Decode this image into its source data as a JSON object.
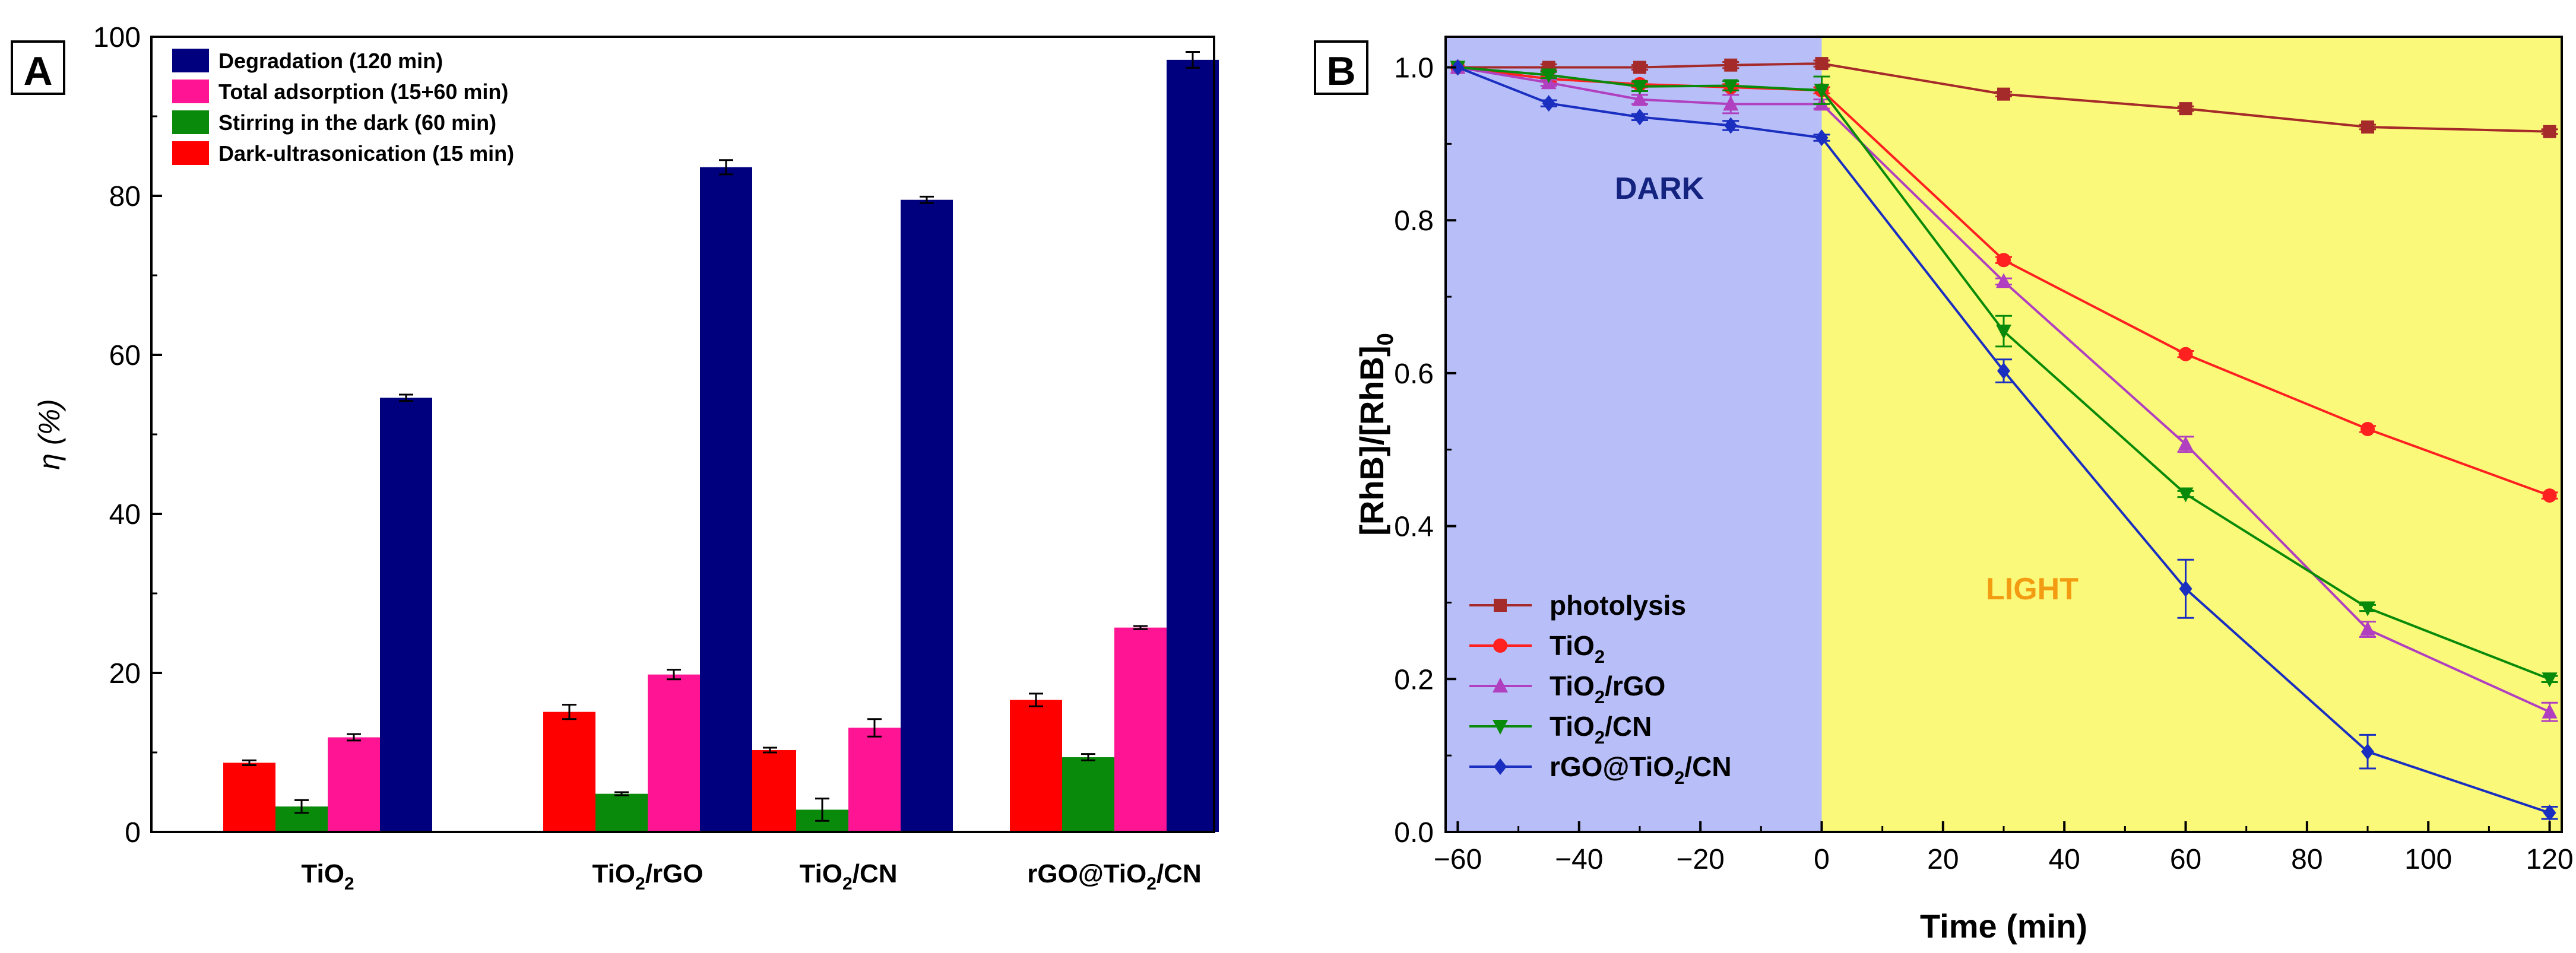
{
  "chart_data": [
    {
      "panel": "A",
      "type": "bar",
      "ylabel": "η (%)",
      "xlabel": "",
      "ylim": [
        0,
        100
      ],
      "yticks": [
        0,
        20,
        40,
        60,
        80,
        100
      ],
      "categories": [
        "TiO2",
        "TiO2/rGO",
        "TiO2/CN",
        "rGO@TiO2/CN"
      ],
      "category_labels": [
        {
          "parts": [
            {
              "t": "TiO"
            },
            {
              "t": "2",
              "sub": true
            }
          ]
        },
        {
          "parts": [
            {
              "t": "TiO"
            },
            {
              "t": "2",
              "sub": true
            },
            {
              "t": "/rGO"
            }
          ]
        },
        {
          "parts": [
            {
              "t": "TiO"
            },
            {
              "t": "2",
              "sub": true
            },
            {
              "t": "/CN"
            }
          ]
        },
        {
          "parts": [
            {
              "t": "rGO@TiO"
            },
            {
              "t": "2",
              "sub": true
            },
            {
              "t": "/CN"
            }
          ]
        }
      ],
      "series": [
        {
          "name": "Dark-ultrasonication (15 min)",
          "color": "#ff0000",
          "values": [
            8.7,
            15.1,
            10.3,
            16.6
          ],
          "errors": [
            0.3,
            0.9,
            0.3,
            0.8
          ]
        },
        {
          "name": "Stirring in the dark (60 min)",
          "color": "#0a8a0a",
          "values": [
            3.2,
            4.8,
            2.8,
            9.4
          ],
          "errors": [
            0.8,
            0.2,
            1.4,
            0.4
          ]
        },
        {
          "name": "Total adsorption (15+60 min)",
          "color": "#ff1493",
          "values": [
            11.9,
            19.8,
            13.1,
            25.7
          ],
          "errors": [
            0.4,
            0.6,
            1.1,
            0.2
          ]
        },
        {
          "name": "Degradation (120 min)",
          "color": "#00007f",
          "values": [
            54.6,
            83.6,
            79.5,
            97.1
          ],
          "errors": [
            0.4,
            0.9,
            0.4,
            1.0
          ]
        }
      ],
      "legend_order": [
        "Degradation (120 min)",
        "Total adsorption (15+60 min)",
        "Stirring in the dark (60 min)",
        "Dark-ultrasonication (15 min)"
      ],
      "legend_position": "top-left"
    },
    {
      "panel": "B",
      "type": "line",
      "xlabel": "Time (min)",
      "ylabel": {
        "parts": [
          {
            "t": "[RhB]/[RhB]"
          },
          {
            "t": "0",
            "sub": true
          }
        ]
      },
      "xlim": [
        -62,
        122
      ],
      "ylim": [
        0,
        1.04
      ],
      "xticks": [
        -60,
        -40,
        -20,
        0,
        20,
        40,
        60,
        80,
        100,
        120
      ],
      "yticks": [
        0.0,
        0.2,
        0.4,
        0.6,
        0.8,
        1.0
      ],
      "dark_region": {
        "label": "DARK",
        "from": -62,
        "to": 0,
        "color": "#b8bff8",
        "label_color": "#13237f"
      },
      "light_region": {
        "label": "LIGHT",
        "from": 0,
        "to": 122,
        "color": "#fbf97a",
        "label_color": "#f39c12"
      },
      "x": [
        -60,
        -45,
        -30,
        -15,
        0,
        30,
        60,
        90,
        120
      ],
      "series": [
        {
          "name": "photolysis",
          "label_parts": [
            {
              "t": "photolysis"
            }
          ],
          "color": "#a52a2a",
          "marker": "square",
          "values": [
            1.0,
            1.0,
            1.0,
            1.003,
            1.005,
            0.965,
            0.946,
            0.922,
            0.916
          ],
          "errors": [
            0,
            0.004,
            0.003,
            0.004,
            0.004,
            0.003,
            0.003,
            0.003,
            0.003
          ]
        },
        {
          "name": "TiO2",
          "label_parts": [
            {
              "t": "TiO"
            },
            {
              "t": "2",
              "sub": true
            }
          ],
          "color": "#ff2020",
          "marker": "circle",
          "values": [
            1.0,
            0.985,
            0.978,
            0.974,
            0.97,
            0.748,
            0.625,
            0.527,
            0.44
          ],
          "errors": [
            0,
            0.004,
            0.004,
            0.004,
            0.004,
            0.004,
            0.004,
            0.004,
            0.004
          ]
        },
        {
          "name": "TiO2/rGO",
          "label_parts": [
            {
              "t": "TiO"
            },
            {
              "t": "2",
              "sub": true
            },
            {
              "t": "/rGO"
            }
          ],
          "color": "#b040c0",
          "marker": "triangle-up",
          "values": [
            1.0,
            0.98,
            0.958,
            0.952,
            0.952,
            0.72,
            0.507,
            0.265,
            0.157
          ],
          "errors": [
            0,
            0.004,
            0.006,
            0.012,
            0.006,
            0.004,
            0.01,
            0.01,
            0.012
          ]
        },
        {
          "name": "TiO2/CN",
          "label_parts": [
            {
              "t": "TiO"
            },
            {
              "t": "2",
              "sub": true
            },
            {
              "t": "/CN"
            }
          ],
          "color": "#0a8a0a",
          "marker": "triangle-down",
          "values": [
            1.0,
            0.99,
            0.975,
            0.976,
            0.97,
            0.655,
            0.442,
            0.293,
            0.2
          ],
          "errors": [
            0,
            0.004,
            0.006,
            0.006,
            0.018,
            0.02,
            0.004,
            0.004,
            0.004
          ]
        },
        {
          "name": "rGO@TiO2/CN",
          "label_parts": [
            {
              "t": "rGO@TiO"
            },
            {
              "t": "2",
              "sub": true
            },
            {
              "t": "/CN"
            }
          ],
          "color": "#1a2ec0",
          "marker": "diamond",
          "values": [
            1.0,
            0.953,
            0.935,
            0.924,
            0.908,
            0.603,
            0.318,
            0.105,
            0.025
          ],
          "errors": [
            0,
            0.004,
            0.004,
            0.006,
            0.004,
            0.015,
            0.038,
            0.022,
            0.008
          ]
        }
      ],
      "legend_position": "bottom-left"
    }
  ]
}
